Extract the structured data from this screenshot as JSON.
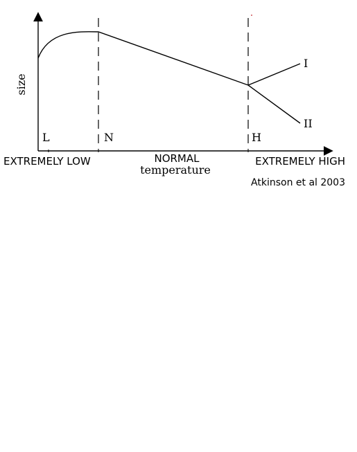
{
  "diagram": {
    "y_axis_label": "size",
    "x_axis_label": "temperature",
    "region_labels": {
      "low": "EXTREMELY LOW",
      "normal": "NORMAL",
      "high": "EXTREMELY HIGH"
    },
    "markers": {
      "low": "L",
      "normal": "N",
      "high": "H"
    },
    "branch_labels": {
      "one": "I",
      "two": "II"
    },
    "citation": "Atkinson et al 2003",
    "colors": {
      "stroke": "#000000",
      "background": "#ffffff"
    }
  }
}
